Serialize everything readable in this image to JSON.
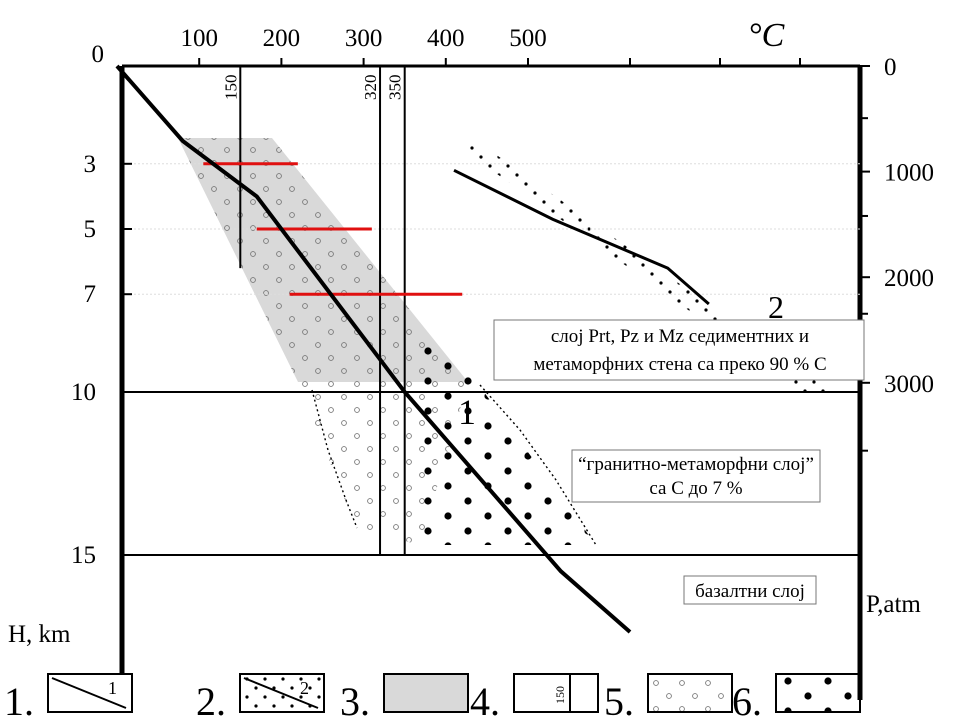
{
  "chart_data": {
    "type": "line",
    "x_unit_label": "°C",
    "x_ticks": [
      "100",
      "200",
      "300",
      "400",
      "500"
    ],
    "x_range": [
      0,
      1000
    ],
    "y_left_label": "H, km",
    "y_left_ticks": [
      "0",
      "3",
      "5",
      "7",
      "10",
      "15"
    ],
    "y_right_label": "P,atm",
    "y_right_ticks": [
      "0",
      "1000",
      "2000",
      "3000"
    ],
    "depth_range_km": [
      0,
      18
    ],
    "isotherms": [
      {
        "t": 150,
        "label": "150",
        "depth_to": 6.2
      },
      {
        "t": 320,
        "label": "320",
        "depth_to": 15
      },
      {
        "t": 350,
        "label": "350",
        "depth_to": 15
      }
    ],
    "boundaries_km": [
      10,
      15
    ],
    "red_marks": [
      {
        "depth": 3,
        "t_from": 105,
        "t_to": 220
      },
      {
        "depth": 5,
        "t_from": 170,
        "t_to": 310
      },
      {
        "depth": 7,
        "t_from": 210,
        "t_to": 420
      }
    ],
    "geotherm_1": {
      "label": "1",
      "points": [
        [
          0,
          0
        ],
        [
          80,
          2.3
        ],
        [
          170,
          4.0
        ],
        [
          350,
          10.0
        ],
        [
          540,
          15.5
        ]
      ]
    },
    "geotherm_2": {
      "label": "2",
      "points": [
        [
          410,
          3.2
        ],
        [
          530,
          4.7
        ],
        [
          670,
          6.2
        ],
        [
          720,
          7.3
        ]
      ]
    },
    "layer_labels": [
      {
        "line1": "слој Prt, Pz и Mz седиментних и",
        "line2": "метаморфних стена са преко 90 % С"
      },
      {
        "line1": "“гранитно-метаморфни слој”",
        "line2": "са С до 7 %"
      },
      {
        "line1": "базалтни слој",
        "line2": ""
      }
    ],
    "legend": [
      {
        "num": "1.",
        "sample_label": "1"
      },
      {
        "num": "2.",
        "sample_label": "2"
      },
      {
        "num": "3.",
        "sample_label": ""
      },
      {
        "num": "4.",
        "sample_label": "150"
      },
      {
        "num": "5.",
        "sample_label": ""
      },
      {
        "num": "6.",
        "sample_label": ""
      }
    ]
  }
}
